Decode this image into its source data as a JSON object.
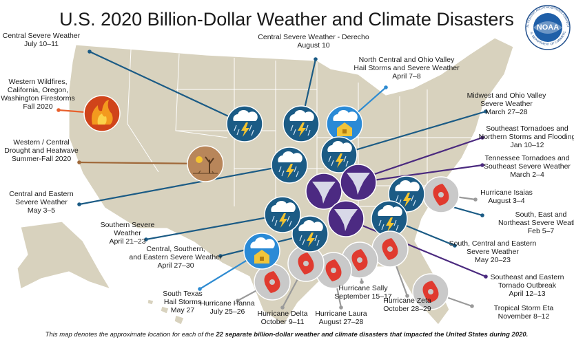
{
  "title": "U.S. 2020 Billion-Dollar Weather and Climate Disasters",
  "logo": {
    "name": "NOAA",
    "ring_top": "NATIONAL OCEANIC AND ATMOSPHERIC ADMINISTRATION",
    "ring_bottom": "U.S. DEPARTMENT OF COMMERCE"
  },
  "events": [
    {
      "lines": [
        "Central Severe Weather"
      ],
      "date": "July 10–11"
    },
    {
      "lines": [
        "Central Severe Weather - Derecho"
      ],
      "date": "August 10"
    },
    {
      "lines": [
        "North Central and Ohio Valley",
        "Hail Storms and Severe Weather"
      ],
      "date": "April 7–8"
    },
    {
      "lines": [
        "Midwest and Ohio Valley",
        "Severe Weather"
      ],
      "date": "March 27–28"
    },
    {
      "lines": [
        "Southeast Tornadoes and",
        "Northern Storms and Flooding"
      ],
      "date": "Jan 10–12"
    },
    {
      "lines": [
        "Tennessee Tornadoes and",
        "Southeast Severe Weather"
      ],
      "date": "March 2–4"
    },
    {
      "lines": [
        "Hurricane Isaias"
      ],
      "date": "August 3–4"
    },
    {
      "lines": [
        "South, East and",
        "Northeast Severe Weather"
      ],
      "date": "Feb 5–7"
    },
    {
      "lines": [
        "South, Central and Eastern",
        "Severe Weather"
      ],
      "date": "May 20–23"
    },
    {
      "lines": [
        "Southeast and Eastern",
        "Tornado Outbreak"
      ],
      "date": "April 12–13"
    },
    {
      "lines": [
        "Tropical Storm Eta"
      ],
      "date": "November 8–12"
    },
    {
      "lines": [
        "Hurricane Zeta"
      ],
      "date": "October 28–29"
    },
    {
      "lines": [
        "Hurricane Sally"
      ],
      "date": "September 15–17"
    },
    {
      "lines": [
        "Hurricane Laura"
      ],
      "date": "August 27–28"
    },
    {
      "lines": [
        "Hurricane Delta"
      ],
      "date": "October 9–11"
    },
    {
      "lines": [
        "Hurricane Hanna"
      ],
      "date": "July 25–26"
    },
    {
      "lines": [
        "South Texas",
        "Hail Storms"
      ],
      "date": "May 27"
    },
    {
      "lines": [
        "Central, Southern,",
        "and Eastern Severe Weather"
      ],
      "date": "April 27–30"
    },
    {
      "lines": [
        "Southern Severe",
        "Weather"
      ],
      "date": "April 21–23"
    },
    {
      "lines": [
        "Central and Eastern",
        "Severe Weather"
      ],
      "date": "May 3–5"
    },
    {
      "lines": [
        "Western / Central",
        "Drought and Heatwave"
      ],
      "date": "Summer-Fall 2020"
    },
    {
      "lines": [
        "Western Wildfires,",
        "California, Oregon,",
        "Washington Firestorms"
      ],
      "date": "Fall 2020"
    }
  ],
  "footnote": {
    "text": "This map denotes the approximate location for each of the ",
    "emphasis": "22 separate billion-dollar weather and climate disasters that impacted the United States during 2020."
  }
}
